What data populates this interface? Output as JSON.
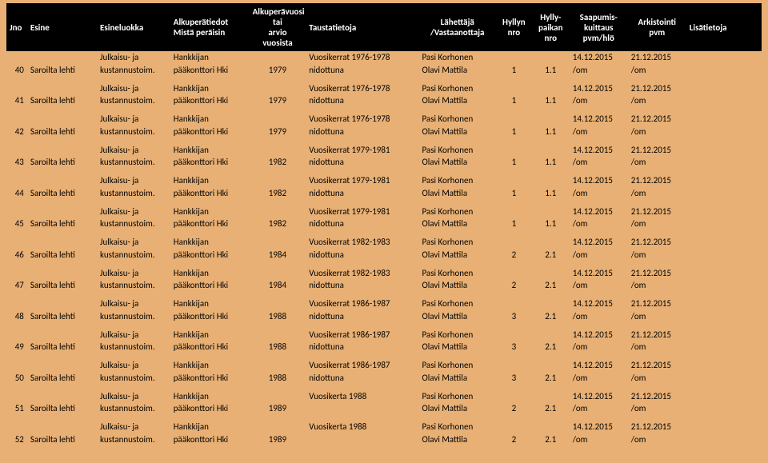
{
  "headers": {
    "jno": "Jno",
    "esine": "Esine",
    "esineluokka": "Esineluokka",
    "alkuperatiedot_l1": "Alkuperätiedot",
    "alkuperatiedot_l2": "Mistä peräisin",
    "alkuperavuosi_l1": "Alkuperävuosi tai",
    "alkuperavuosi_l2": "arvio vuosista",
    "taustatietoja": "Taustatietoja",
    "lahettaja_l1": "Lähettäjä",
    "lahettaja_l2": "/Vastaanottaja",
    "hyllyn_l1": "Hyllyn",
    "hyllyn_l2": "nro",
    "hyllypaikan_l1": "Hylly-",
    "hyllypaikan_l2": "paikan",
    "hyllypaikan_l3": "nro",
    "saapumis_l1": "Saapumis-",
    "saapumis_l2": "kuittaus",
    "saapumis_l3": "pvm/hlö",
    "arkistointi_l1": "Arkistointi",
    "arkistointi_l2": "pvm",
    "lisatietoja": "Lisätietoja"
  },
  "common": {
    "esine": "Saroilta lehti",
    "luokka_l1": "Julkaisu- ja",
    "luokka_l2": "kustannustoim.",
    "alkup_l1": "Hankkijan",
    "alkup_l2": "pääkonttori Hki",
    "lahet_l1": "Pasi Korhonen",
    "lahet_l2": "Olavi Mattila",
    "saap_l1": "14.12.2015",
    "saap_l2": "/om",
    "ark_l1": "21.12.2015",
    "ark_l2": "/om"
  },
  "rows": [
    {
      "jno": "40",
      "vuosi": "1979",
      "tausta_l1": "Vuosikerrat 1976-1978",
      "tausta_l2": "nidottuna",
      "hnro": "1",
      "hpnro": "1.1"
    },
    {
      "jno": "41",
      "vuosi": "1979",
      "tausta_l1": "Vuosikerrat 1976-1978",
      "tausta_l2": "nidottuna",
      "hnro": "1",
      "hpnro": "1.1"
    },
    {
      "jno": "42",
      "vuosi": "1979",
      "tausta_l1": "Vuosikerrat 1976-1978",
      "tausta_l2": "nidottuna",
      "hnro": "1",
      "hpnro": "1.1"
    },
    {
      "jno": "43",
      "vuosi": "1982",
      "tausta_l1": "Vuosikerrat 1979-1981",
      "tausta_l2": "nidottuna",
      "hnro": "1",
      "hpnro": "1.1"
    },
    {
      "jno": "44",
      "vuosi": "1982",
      "tausta_l1": "Vuosikerrat 1979-1981",
      "tausta_l2": "nidottuna",
      "hnro": "1",
      "hpnro": "1.1"
    },
    {
      "jno": "45",
      "vuosi": "1982",
      "tausta_l1": "Vuosikerrat 1979-1981",
      "tausta_l2": "nidottuna",
      "hnro": "1",
      "hpnro": "1.1"
    },
    {
      "jno": "46",
      "vuosi": "1984",
      "tausta_l1": "Vuosikerrat 1982-1983",
      "tausta_l2": "nidottuna",
      "hnro": "2",
      "hpnro": "2.1"
    },
    {
      "jno": "47",
      "vuosi": "1984",
      "tausta_l1": "Vuosikerrat 1982-1983",
      "tausta_l2": "nidottuna",
      "hnro": "2",
      "hpnro": "2.1"
    },
    {
      "jno": "48",
      "vuosi": "1988",
      "tausta_l1": "Vuosikerrat 1986-1987",
      "tausta_l2": "nidottuna",
      "hnro": "3",
      "hpnro": "2.1"
    },
    {
      "jno": "49",
      "vuosi": "1988",
      "tausta_l1": "Vuosikerrat 1986-1987",
      "tausta_l2": "nidottuna",
      "hnro": "3",
      "hpnro": "2.1"
    },
    {
      "jno": "50",
      "vuosi": "1988",
      "tausta_l1": "Vuosikerrat 1986-1987",
      "tausta_l2": "nidottuna",
      "hnro": "3",
      "hpnro": "2.1"
    },
    {
      "jno": "51",
      "vuosi": "1989",
      "tausta_l1": "Vuosikerta 1988",
      "tausta_l2": "",
      "hnro": "2",
      "hpnro": "2.1"
    },
    {
      "jno": "52",
      "vuosi": "1989",
      "tausta_l1": "Vuosikerta 1988",
      "tausta_l2": "",
      "hnro": "2",
      "hpnro": "2.1"
    }
  ]
}
